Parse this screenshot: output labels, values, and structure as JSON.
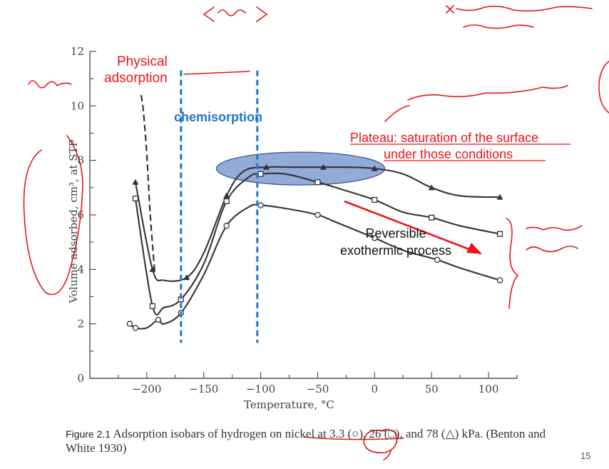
{
  "chart_data": {
    "type": "line",
    "xlabel": "Temperature, °C",
    "ylabel": "Volume adsorbed, cm³, at STP",
    "xlim": [
      -250,
      125
    ],
    "ylim": [
      0,
      12
    ],
    "xticks": [
      -200,
      -150,
      -100,
      -50,
      0,
      50,
      100
    ],
    "xtick_labels": [
      "−200",
      "−150",
      "−100",
      "−50",
      "0",
      "50",
      "100"
    ],
    "yticks": [
      0,
      2,
      4,
      6,
      8,
      10,
      12
    ],
    "ytick_labels": [
      "0",
      "2",
      "4",
      "6",
      "8",
      "10",
      "12"
    ],
    "grid": false,
    "series": [
      {
        "marker": "triangle",
        "x": [
          -210,
          -195,
          -185,
          -165,
          -150,
          -130,
          -115,
          -95,
          -70,
          -45,
          -25,
          0,
          25,
          50,
          75,
          110
        ],
        "y": [
          7.2,
          4.0,
          3.6,
          3.7,
          4.6,
          6.7,
          7.6,
          7.75,
          7.75,
          7.75,
          7.75,
          7.7,
          7.5,
          7.0,
          6.7,
          6.65
        ]
      },
      {
        "marker": "square",
        "x": [
          -210,
          -195,
          -185,
          -170,
          -150,
          -130,
          -110,
          -100,
          -78,
          -50,
          -30,
          0,
          25,
          50,
          75,
          110
        ],
        "y": [
          6.6,
          2.65,
          2.6,
          2.9,
          4.2,
          6.5,
          7.4,
          7.5,
          7.5,
          7.2,
          6.95,
          6.55,
          6.1,
          5.9,
          5.6,
          5.3
        ]
      },
      {
        "marker": "circle",
        "x": [
          -215,
          -210,
          -200,
          -190,
          -185,
          -170,
          -150,
          -130,
          -110,
          -100,
          -80,
          -50,
          -35,
          0,
          25,
          55,
          75,
          110
        ],
        "y": [
          2.0,
          1.85,
          1.85,
          2.15,
          2.0,
          2.4,
          3.8,
          5.6,
          6.3,
          6.35,
          6.25,
          6.0,
          5.75,
          5.15,
          4.7,
          4.35,
          4.05,
          3.6
        ]
      }
    ],
    "dashed_curve": {
      "x": [
        -205,
        -203,
        -200,
        -197,
        -193
      ],
      "y": [
        10.4,
        9.8,
        8.2,
        6.0,
        3.9
      ]
    },
    "annotations": {
      "physical_label_line1": "Physical",
      "physical_label_line2": "adsorption",
      "chemisorption_label": "chemisorption",
      "plateau_line1": "Plateau: saturation of the surface",
      "plateau_line2": "under those conditions",
      "reversible_line1": "Reversible",
      "reversible_line2": "exothermic process",
      "vline_1_x": -170,
      "vline_2_x": -103,
      "colors": {
        "red": "#e8151b",
        "blue": "#1f77c8",
        "ellipse_fill": "#6d8fc9",
        "ellipse_stroke": "#3557a0",
        "curves": "#333333"
      }
    }
  },
  "caption": {
    "figure_label": "Figure 2.1",
    "text": " Adsorption isobars of hydrogen on nickel at 3.3 (○), 26 (□), and 78 (△) kPa. (Benton and White 1930)"
  },
  "page_number": "15"
}
